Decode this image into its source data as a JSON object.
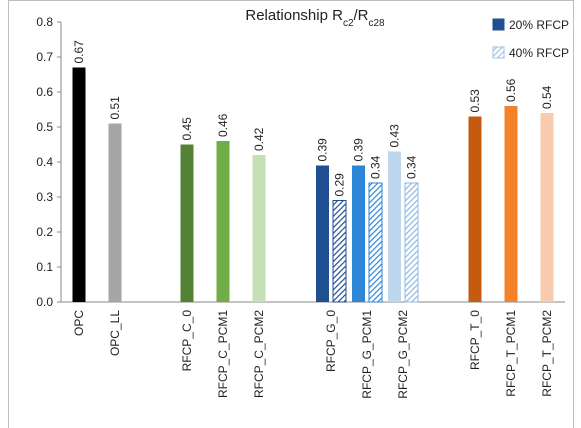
{
  "chart_data": {
    "type": "bar",
    "title": [
      "Relationship R",
      "c2",
      "/R",
      "c28"
    ],
    "categories": [
      "OPC",
      "OPC_LL",
      null,
      "RFCP_C_0",
      "RFCP_C_PCM1",
      "RFCP_C_PCM2",
      null,
      "RFCP_G_0",
      "RFCP_G_PCM1",
      "RFCP_G_PCM2",
      null,
      "RFCP_T_0",
      "RFCP_T_PCM1",
      "RFCP_T_PCM2"
    ],
    "series": [
      {
        "name": "20% RFCP",
        "color": "#1f4e91",
        "hatched": false,
        "values": [
          0.67,
          0.51,
          null,
          0.45,
          0.46,
          0.42,
          null,
          0.39,
          0.39,
          0.43,
          null,
          0.53,
          0.56,
          0.54
        ],
        "colors": [
          "#000000",
          "#a6a6a6",
          null,
          "#548235",
          "#70ad47",
          "#c5e0b4",
          null,
          "#1f4e91",
          "#2e86d6",
          "#bdd7ee",
          null,
          "#c55a11",
          "#f4822a",
          "#f8cbad"
        ]
      },
      {
        "name": "40% RFCP",
        "color": "#9dc3e6",
        "hatched": true,
        "values": [
          null,
          null,
          null,
          null,
          null,
          null,
          null,
          0.29,
          0.34,
          0.34,
          null,
          null,
          null,
          null
        ],
        "colors": [
          null,
          null,
          null,
          null,
          null,
          null,
          null,
          "#1f4e91",
          "#2e86d6",
          "#8fb8e0",
          null,
          null,
          null,
          null
        ]
      }
    ],
    "ylim": [
      0,
      0.8
    ],
    "yticks": [
      {
        "value": 0,
        "label": "0.0"
      },
      0.1,
      0.2,
      0.3,
      0.4,
      0.5,
      0.6,
      0.7,
      0.8
    ],
    "grid": false
  }
}
